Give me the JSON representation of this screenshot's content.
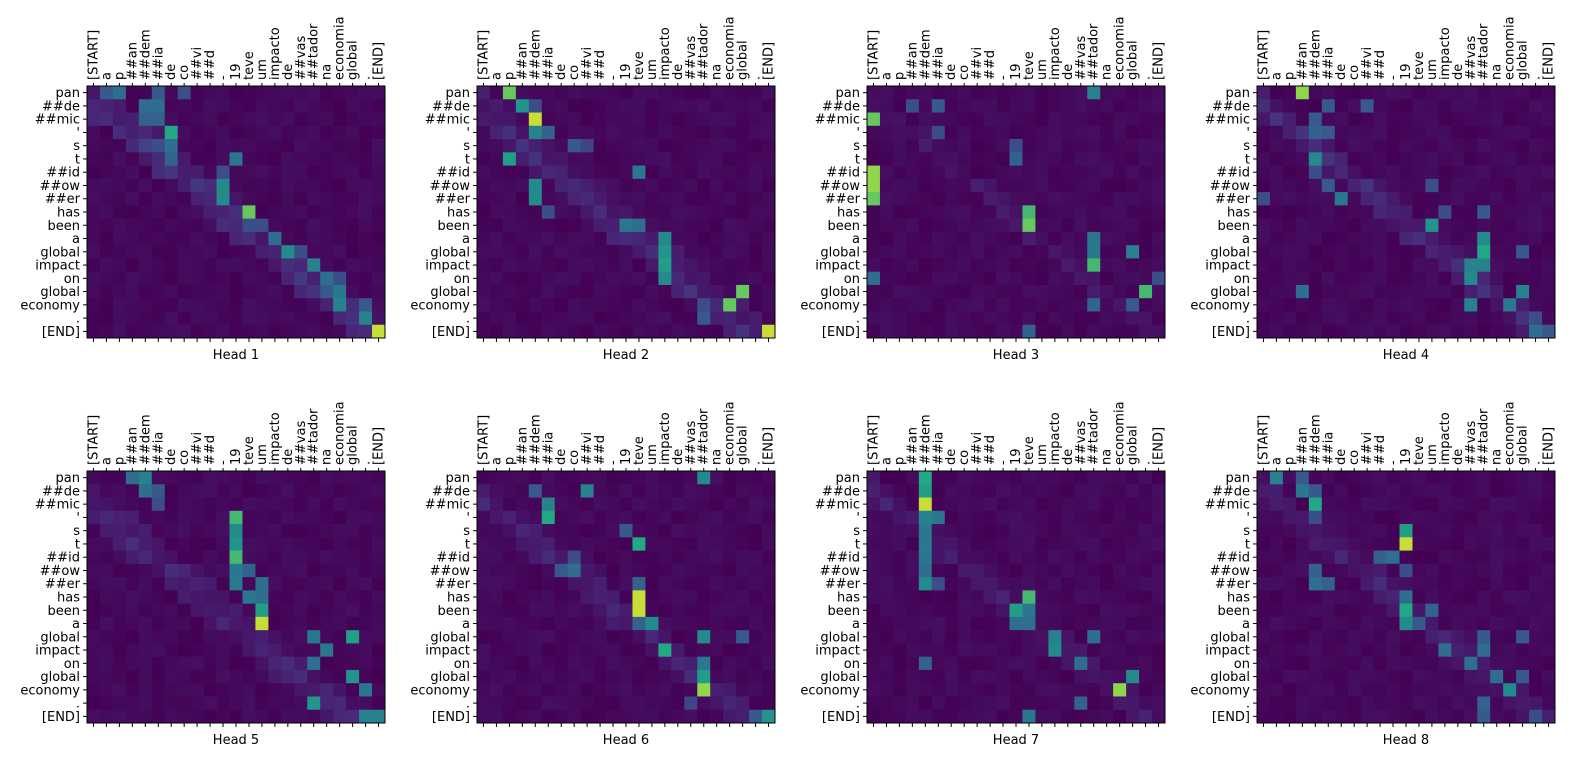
{
  "figure": {
    "background": "#ffffff",
    "colormap": "viridis"
  },
  "chart_data": {
    "type": "heatmap",
    "x_tokens": [
      "[START]",
      "a",
      "p",
      "##an",
      "##dem",
      "##ia",
      "de",
      "co",
      "##vi",
      "##d",
      "-",
      "19",
      "teve",
      "um",
      "impacto",
      "de",
      "##vas",
      "##tador",
      "na",
      "economia",
      "global",
      ".",
      "[END]"
    ],
    "y_tokens": [
      "pan",
      "##de",
      "##mic",
      "'",
      "s",
      "t",
      "##id",
      "##ow",
      "##er",
      "has",
      "been",
      "a",
      "global",
      "impact",
      "on",
      "global",
      "economy",
      ".",
      "[END]"
    ],
    "heads": [
      {
        "title": "Head 1",
        "peaks": [
          [
            0,
            1,
            0.35
          ],
          [
            0,
            2,
            0.45
          ],
          [
            0,
            5,
            0.35
          ],
          [
            0,
            7,
            0.3
          ],
          [
            1,
            4,
            0.45
          ],
          [
            1,
            5,
            0.45
          ],
          [
            2,
            4,
            0.4
          ],
          [
            2,
            5,
            0.4
          ],
          [
            3,
            6,
            0.75
          ],
          [
            4,
            6,
            0.45
          ],
          [
            4,
            5,
            0.3
          ],
          [
            5,
            6,
            0.4
          ],
          [
            5,
            11,
            0.5
          ],
          [
            6,
            10,
            0.3
          ],
          [
            7,
            10,
            0.6
          ],
          [
            8,
            10,
            0.6
          ],
          [
            9,
            12,
            0.85
          ],
          [
            10,
            13,
            0.3
          ],
          [
            10,
            12,
            0.3
          ],
          [
            11,
            14,
            0.45
          ],
          [
            12,
            15,
            0.6
          ],
          [
            12,
            16,
            0.3
          ],
          [
            13,
            17,
            0.55
          ],
          [
            14,
            18,
            0.45
          ],
          [
            14,
            19,
            0.3
          ],
          [
            15,
            18,
            0.35
          ],
          [
            15,
            19,
            0.5
          ],
          [
            16,
            19,
            0.55
          ],
          [
            16,
            21,
            0.35
          ],
          [
            17,
            21,
            0.55
          ],
          [
            18,
            22,
            0.95
          ]
        ],
        "band": [
          [
            -2,
            0.12
          ],
          [
            -1,
            0.18
          ],
          [
            0,
            0.12
          ],
          [
            1,
            0.08
          ]
        ]
      },
      {
        "title": "Head 2",
        "peaks": [
          [
            0,
            2,
            0.85
          ],
          [
            1,
            3,
            0.65
          ],
          [
            1,
            4,
            0.3
          ],
          [
            2,
            4,
            0.95
          ],
          [
            3,
            4,
            0.55
          ],
          [
            3,
            5,
            0.4
          ],
          [
            4,
            7,
            0.35
          ],
          [
            4,
            8,
            0.25
          ],
          [
            5,
            2,
            0.7
          ],
          [
            6,
            12,
            0.5
          ],
          [
            7,
            4,
            0.6
          ],
          [
            8,
            4,
            0.6
          ],
          [
            9,
            5,
            0.3
          ],
          [
            10,
            11,
            0.5
          ],
          [
            10,
            12,
            0.45
          ],
          [
            11,
            14,
            0.6
          ],
          [
            12,
            14,
            0.65
          ],
          [
            13,
            14,
            0.7
          ],
          [
            14,
            14,
            0.6
          ],
          [
            15,
            20,
            0.85
          ],
          [
            16,
            19,
            0.85
          ],
          [
            16,
            17,
            0.3
          ],
          [
            17,
            17,
            0.35
          ],
          [
            18,
            22,
            0.95
          ]
        ],
        "band": [
          [
            -3,
            0.1
          ],
          [
            -2,
            0.14
          ],
          [
            -1,
            0.1
          ],
          [
            0,
            0.08
          ]
        ]
      },
      {
        "title": "Head 3",
        "peaks": [
          [
            0,
            17,
            0.55
          ],
          [
            1,
            3,
            0.3
          ],
          [
            1,
            5,
            0.35
          ],
          [
            2,
            0,
            0.85
          ],
          [
            3,
            5,
            0.3
          ],
          [
            4,
            11,
            0.3
          ],
          [
            5,
            11,
            0.4
          ],
          [
            6,
            0,
            0.9
          ],
          [
            7,
            0,
            0.9
          ],
          [
            8,
            0,
            0.85
          ],
          [
            9,
            12,
            0.8
          ],
          [
            10,
            12,
            0.85
          ],
          [
            11,
            17,
            0.5
          ],
          [
            12,
            17,
            0.5
          ],
          [
            12,
            20,
            0.55
          ],
          [
            13,
            17,
            0.8
          ],
          [
            14,
            0,
            0.45
          ],
          [
            14,
            22,
            0.3
          ],
          [
            15,
            21,
            0.8
          ],
          [
            16,
            17,
            0.4
          ],
          [
            16,
            20,
            0.35
          ],
          [
            18,
            12,
            0.4
          ]
        ],
        "band": [
          [
            -1,
            0.08
          ],
          [
            0,
            0.06
          ]
        ]
      },
      {
        "title": "Head 4",
        "peaks": [
          [
            0,
            3,
            0.9
          ],
          [
            1,
            5,
            0.35
          ],
          [
            1,
            8,
            0.35
          ],
          [
            2,
            4,
            0.35
          ],
          [
            3,
            4,
            0.4
          ],
          [
            3,
            5,
            0.35
          ],
          [
            5,
            4,
            0.6
          ],
          [
            6,
            4,
            0.3
          ],
          [
            7,
            5,
            0.35
          ],
          [
            7,
            13,
            0.3
          ],
          [
            8,
            0,
            0.3
          ],
          [
            8,
            6,
            0.5
          ],
          [
            9,
            14,
            0.3
          ],
          [
            9,
            17,
            0.35
          ],
          [
            10,
            13,
            0.65
          ],
          [
            11,
            17,
            0.6
          ],
          [
            12,
            17,
            0.75
          ],
          [
            12,
            20,
            0.35
          ],
          [
            13,
            16,
            0.55
          ],
          [
            13,
            17,
            0.55
          ],
          [
            14,
            16,
            0.6
          ],
          [
            15,
            3,
            0.45
          ],
          [
            15,
            20,
            0.55
          ],
          [
            16,
            16,
            0.55
          ],
          [
            16,
            19,
            0.5
          ],
          [
            17,
            21,
            0.3
          ],
          [
            18,
            21,
            0.45
          ],
          [
            18,
            22,
            0.35
          ]
        ],
        "band": [
          [
            -2,
            0.1
          ],
          [
            -1,
            0.14
          ],
          [
            0,
            0.1
          ]
        ]
      },
      {
        "title": "Head 5",
        "peaks": [
          [
            0,
            3,
            0.45
          ],
          [
            0,
            4,
            0.55
          ],
          [
            1,
            4,
            0.45
          ],
          [
            1,
            5,
            0.35
          ],
          [
            2,
            5,
            0.3
          ],
          [
            3,
            11,
            0.8
          ],
          [
            4,
            11,
            0.6
          ],
          [
            5,
            11,
            0.65
          ],
          [
            6,
            11,
            0.8
          ],
          [
            7,
            11,
            0.5
          ],
          [
            7,
            12,
            0.4
          ],
          [
            8,
            11,
            0.5
          ],
          [
            8,
            13,
            0.45
          ],
          [
            9,
            12,
            0.5
          ],
          [
            9,
            13,
            0.45
          ],
          [
            10,
            13,
            0.7
          ],
          [
            11,
            13,
            0.95
          ],
          [
            12,
            17,
            0.5
          ],
          [
            12,
            20,
            0.7
          ],
          [
            13,
            18,
            0.5
          ],
          [
            14,
            17,
            0.45
          ],
          [
            15,
            20,
            0.65
          ],
          [
            16,
            21,
            0.5
          ],
          [
            17,
            17,
            0.65
          ],
          [
            18,
            21,
            0.55
          ],
          [
            18,
            22,
            0.55
          ]
        ],
        "band": [
          [
            -4,
            0.08
          ],
          [
            -3,
            0.12
          ],
          [
            -2,
            0.12
          ],
          [
            -1,
            0.08
          ]
        ]
      },
      {
        "title": "Head 6",
        "peaks": [
          [
            0,
            17,
            0.6
          ],
          [
            1,
            4,
            0.35
          ],
          [
            1,
            8,
            0.55
          ],
          [
            2,
            5,
            0.55
          ],
          [
            3,
            5,
            0.75
          ],
          [
            4,
            11,
            0.35
          ],
          [
            5,
            12,
            0.75
          ],
          [
            6,
            7,
            0.3
          ],
          [
            7,
            6,
            0.35
          ],
          [
            7,
            7,
            0.45
          ],
          [
            8,
            12,
            0.4
          ],
          [
            9,
            12,
            0.95
          ],
          [
            10,
            12,
            0.95
          ],
          [
            11,
            13,
            0.6
          ],
          [
            11,
            12,
            0.4
          ],
          [
            12,
            17,
            0.6
          ],
          [
            12,
            20,
            0.35
          ],
          [
            13,
            14,
            0.75
          ],
          [
            14,
            17,
            0.5
          ],
          [
            15,
            17,
            0.7
          ],
          [
            16,
            17,
            0.9
          ],
          [
            17,
            16,
            0.25
          ],
          [
            18,
            21,
            0.35
          ],
          [
            18,
            22,
            0.65
          ]
        ],
        "band": [
          [
            -3,
            0.08
          ],
          [
            -2,
            0.12
          ],
          [
            -1,
            0.08
          ]
        ]
      },
      {
        "title": "Head 7",
        "peaks": [
          [
            0,
            4,
            0.75
          ],
          [
            1,
            4,
            0.7
          ],
          [
            2,
            4,
            0.95
          ],
          [
            3,
            4,
            0.55
          ],
          [
            3,
            5,
            0.5
          ],
          [
            4,
            4,
            0.5
          ],
          [
            5,
            4,
            0.5
          ],
          [
            6,
            4,
            0.5
          ],
          [
            7,
            4,
            0.45
          ],
          [
            8,
            4,
            0.6
          ],
          [
            8,
            5,
            0.3
          ],
          [
            9,
            12,
            0.8
          ],
          [
            10,
            11,
            0.7
          ],
          [
            10,
            12,
            0.5
          ],
          [
            11,
            11,
            0.45
          ],
          [
            11,
            12,
            0.45
          ],
          [
            12,
            14,
            0.55
          ],
          [
            12,
            17,
            0.45
          ],
          [
            13,
            14,
            0.6
          ],
          [
            14,
            4,
            0.4
          ],
          [
            14,
            16,
            0.45
          ],
          [
            15,
            20,
            0.6
          ],
          [
            16,
            19,
            0.9
          ],
          [
            17,
            16,
            0.4
          ],
          [
            18,
            12,
            0.5
          ]
        ],
        "band": [
          [
            -2,
            0.08
          ],
          [
            -1,
            0.1
          ],
          [
            0,
            0.06
          ]
        ]
      },
      {
        "title": "Head 8",
        "peaks": [
          [
            0,
            1,
            0.55
          ],
          [
            0,
            3,
            0.35
          ],
          [
            1,
            3,
            0.5
          ],
          [
            1,
            4,
            0.35
          ],
          [
            2,
            4,
            0.75
          ],
          [
            3,
            4,
            0.3
          ],
          [
            4,
            11,
            0.7
          ],
          [
            5,
            11,
            0.95
          ],
          [
            6,
            9,
            0.4
          ],
          [
            6,
            10,
            0.45
          ],
          [
            7,
            4,
            0.4
          ],
          [
            7,
            11,
            0.3
          ],
          [
            8,
            4,
            0.45
          ],
          [
            8,
            5,
            0.4
          ],
          [
            9,
            11,
            0.45
          ],
          [
            10,
            11,
            0.75
          ],
          [
            10,
            13,
            0.4
          ],
          [
            11,
            11,
            0.6
          ],
          [
            11,
            12,
            0.35
          ],
          [
            12,
            17,
            0.35
          ],
          [
            12,
            20,
            0.35
          ],
          [
            13,
            14,
            0.45
          ],
          [
            13,
            17,
            0.45
          ],
          [
            14,
            16,
            0.45
          ],
          [
            15,
            18,
            0.45
          ],
          [
            15,
            20,
            0.35
          ],
          [
            16,
            19,
            0.6
          ],
          [
            17,
            17,
            0.4
          ],
          [
            18,
            17,
            0.35
          ],
          [
            18,
            21,
            0.3
          ]
        ],
        "band": [
          [
            -2,
            0.08
          ],
          [
            -1,
            0.12
          ],
          [
            0,
            0.08
          ]
        ]
      }
    ]
  }
}
